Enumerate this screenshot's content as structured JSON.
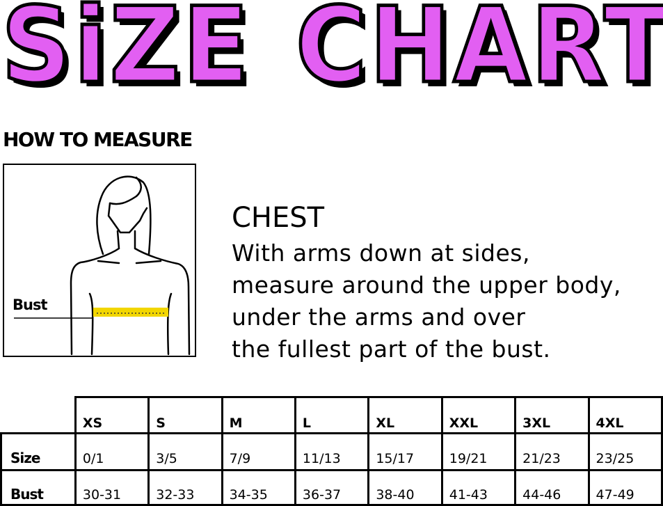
{
  "title": {
    "word1": "SiZE",
    "word2": "CHART",
    "color": "#e25ff2"
  },
  "how_to_measure": "HOW TO MEASURE",
  "figure": {
    "bust_label": "Bust",
    "tape_color": "#f2d600"
  },
  "chest": {
    "heading": "CHEST",
    "lines": [
      "With arms down at sides,",
      "measure around the upper body,",
      "under the arms and over",
      "the fullest part of the bust."
    ]
  },
  "table": {
    "headers": [
      "XS",
      "S",
      "M",
      "L",
      "XL",
      "XXL",
      "3XL",
      "4XL"
    ],
    "rows": [
      {
        "label": "Size",
        "values": [
          "0/1",
          "3/5",
          "7/9",
          "11/13",
          "15/17",
          "19/21",
          "21/23",
          "23/25"
        ]
      },
      {
        "label": "Bust",
        "values": [
          "30-31",
          "32-33",
          "34-35",
          "36-37",
          "38-40",
          "41-43",
          "44-46",
          "47-49"
        ]
      }
    ]
  }
}
